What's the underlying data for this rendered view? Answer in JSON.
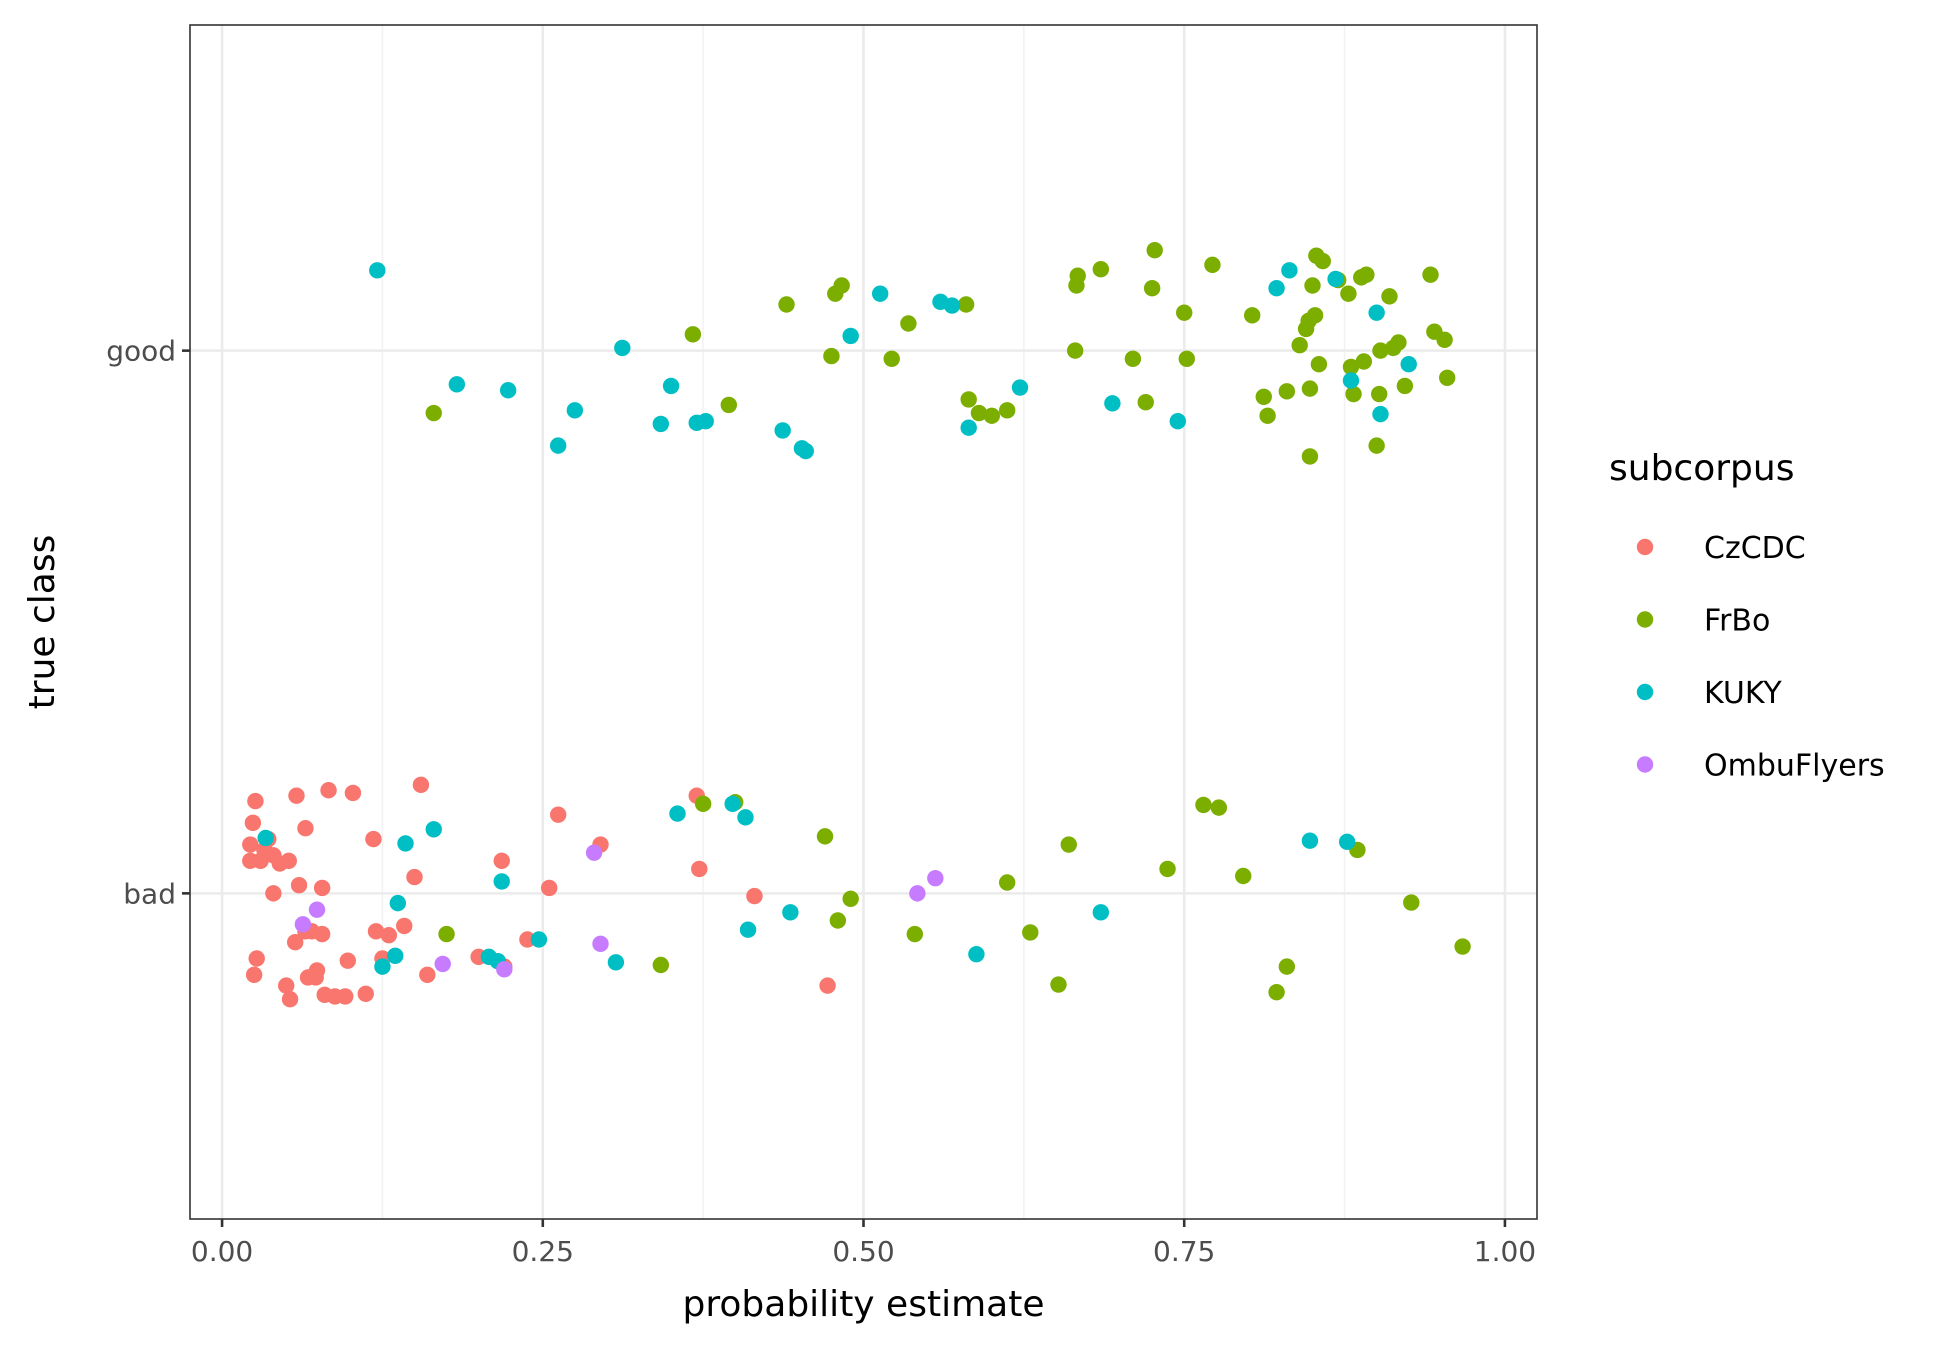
{
  "chart_data": {
    "type": "scatter",
    "xlabel": "probability estimate",
    "ylabel": "true class",
    "xlim": [
      -0.025,
      1.025
    ],
    "x_ticks": [
      "0.00",
      "0.25",
      "0.50",
      "0.75",
      "1.00"
    ],
    "categories": [
      "bad",
      "good"
    ],
    "grid": true,
    "legend": {
      "title": "subcorpus",
      "position": "right"
    },
    "series": [
      {
        "name": "CzCDC",
        "color": "#F8766D",
        "points": [
          {
            "x": 0.022,
            "y": "bad",
            "jitter": 0.09
          },
          {
            "x": 0.024,
            "y": "bad",
            "jitter": 0.13
          },
          {
            "x": 0.026,
            "y": "bad",
            "jitter": 0.17
          },
          {
            "x": 0.022,
            "y": "bad",
            "jitter": 0.06
          },
          {
            "x": 0.03,
            "y": "bad",
            "jitter": 0.06
          },
          {
            "x": 0.033,
            "y": "bad",
            "jitter": 0.08
          },
          {
            "x": 0.036,
            "y": "bad",
            "jitter": 0.1
          },
          {
            "x": 0.04,
            "y": "bad",
            "jitter": 0.07
          },
          {
            "x": 0.045,
            "y": "bad",
            "jitter": 0.055
          },
          {
            "x": 0.052,
            "y": "bad",
            "jitter": 0.06
          },
          {
            "x": 0.04,
            "y": "bad",
            "jitter": 0.0
          },
          {
            "x": 0.058,
            "y": "bad",
            "jitter": 0.18
          },
          {
            "x": 0.065,
            "y": "bad",
            "jitter": 0.12
          },
          {
            "x": 0.06,
            "y": "bad",
            "jitter": 0.015
          },
          {
            "x": 0.078,
            "y": "bad",
            "jitter": 0.01
          },
          {
            "x": 0.083,
            "y": "bad",
            "jitter": 0.19
          },
          {
            "x": 0.102,
            "y": "bad",
            "jitter": 0.185
          },
          {
            "x": 0.118,
            "y": "bad",
            "jitter": 0.1
          },
          {
            "x": 0.155,
            "y": "bad",
            "jitter": 0.2
          },
          {
            "x": 0.15,
            "y": "bad",
            "jitter": 0.03
          },
          {
            "x": 0.057,
            "y": "bad",
            "jitter": -0.09
          },
          {
            "x": 0.027,
            "y": "bad",
            "jitter": -0.12
          },
          {
            "x": 0.025,
            "y": "bad",
            "jitter": -0.15
          },
          {
            "x": 0.05,
            "y": "bad",
            "jitter": -0.17
          },
          {
            "x": 0.053,
            "y": "bad",
            "jitter": -0.195
          },
          {
            "x": 0.065,
            "y": "bad",
            "jitter": -0.07
          },
          {
            "x": 0.067,
            "y": "bad",
            "jitter": -0.155
          },
          {
            "x": 0.07,
            "y": "bad",
            "jitter": -0.07
          },
          {
            "x": 0.073,
            "y": "bad",
            "jitter": -0.155
          },
          {
            "x": 0.074,
            "y": "bad",
            "jitter": -0.142
          },
          {
            "x": 0.078,
            "y": "bad",
            "jitter": -0.075
          },
          {
            "x": 0.08,
            "y": "bad",
            "jitter": -0.187
          },
          {
            "x": 0.088,
            "y": "bad",
            "jitter": -0.19
          },
          {
            "x": 0.096,
            "y": "bad",
            "jitter": -0.19
          },
          {
            "x": 0.098,
            "y": "bad",
            "jitter": -0.124
          },
          {
            "x": 0.112,
            "y": "bad",
            "jitter": -0.185
          },
          {
            "x": 0.12,
            "y": "bad",
            "jitter": -0.07
          },
          {
            "x": 0.125,
            "y": "bad",
            "jitter": -0.12
          },
          {
            "x": 0.13,
            "y": "bad",
            "jitter": -0.077
          },
          {
            "x": 0.142,
            "y": "bad",
            "jitter": -0.06
          },
          {
            "x": 0.16,
            "y": "bad",
            "jitter": -0.15
          },
          {
            "x": 0.2,
            "y": "bad",
            "jitter": -0.117
          },
          {
            "x": 0.218,
            "y": "bad",
            "jitter": 0.06
          },
          {
            "x": 0.22,
            "y": "bad",
            "jitter": -0.135
          },
          {
            "x": 0.238,
            "y": "bad",
            "jitter": -0.085
          },
          {
            "x": 0.255,
            "y": "bad",
            "jitter": 0.01
          },
          {
            "x": 0.262,
            "y": "bad",
            "jitter": 0.145
          },
          {
            "x": 0.295,
            "y": "bad",
            "jitter": 0.09
          },
          {
            "x": 0.37,
            "y": "bad",
            "jitter": 0.18
          },
          {
            "x": 0.372,
            "y": "bad",
            "jitter": 0.045
          },
          {
            "x": 0.415,
            "y": "bad",
            "jitter": -0.005
          },
          {
            "x": 0.472,
            "y": "bad",
            "jitter": -0.17
          }
        ]
      },
      {
        "name": "FrBo",
        "color": "#7CAE00",
        "points": [
          {
            "x": 0.165,
            "y": "good",
            "jitter": -0.115
          },
          {
            "x": 0.367,
            "y": "good",
            "jitter": 0.03
          },
          {
            "x": 0.395,
            "y": "good",
            "jitter": -0.1
          },
          {
            "x": 0.44,
            "y": "good",
            "jitter": 0.085
          },
          {
            "x": 0.475,
            "y": "good",
            "jitter": -0.01
          },
          {
            "x": 0.478,
            "y": "good",
            "jitter": 0.105
          },
          {
            "x": 0.483,
            "y": "good",
            "jitter": 0.12
          },
          {
            "x": 0.522,
            "y": "good",
            "jitter": -0.015
          },
          {
            "x": 0.535,
            "y": "good",
            "jitter": 0.05
          },
          {
            "x": 0.58,
            "y": "good",
            "jitter": 0.085
          },
          {
            "x": 0.582,
            "y": "good",
            "jitter": -0.09
          },
          {
            "x": 0.59,
            "y": "good",
            "jitter": -0.115
          },
          {
            "x": 0.6,
            "y": "good",
            "jitter": -0.12
          },
          {
            "x": 0.612,
            "y": "good",
            "jitter": -0.11
          },
          {
            "x": 0.665,
            "y": "good",
            "jitter": 0.0
          },
          {
            "x": 0.666,
            "y": "good",
            "jitter": 0.12
          },
          {
            "x": 0.667,
            "y": "good",
            "jitter": 0.138
          },
          {
            "x": 0.685,
            "y": "good",
            "jitter": 0.15
          },
          {
            "x": 0.71,
            "y": "good",
            "jitter": -0.015
          },
          {
            "x": 0.72,
            "y": "good",
            "jitter": -0.095
          },
          {
            "x": 0.725,
            "y": "good",
            "jitter": 0.115
          },
          {
            "x": 0.727,
            "y": "good",
            "jitter": 0.185
          },
          {
            "x": 0.75,
            "y": "good",
            "jitter": 0.07
          },
          {
            "x": 0.752,
            "y": "good",
            "jitter": -0.015
          },
          {
            "x": 0.772,
            "y": "good",
            "jitter": 0.158
          },
          {
            "x": 0.803,
            "y": "good",
            "jitter": 0.065
          },
          {
            "x": 0.812,
            "y": "good",
            "jitter": -0.085
          },
          {
            "x": 0.815,
            "y": "good",
            "jitter": -0.12
          },
          {
            "x": 0.83,
            "y": "good",
            "jitter": -0.075
          },
          {
            "x": 0.84,
            "y": "good",
            "jitter": 0.01
          },
          {
            "x": 0.845,
            "y": "good",
            "jitter": 0.04
          },
          {
            "x": 0.847,
            "y": "good",
            "jitter": 0.055
          },
          {
            "x": 0.848,
            "y": "good",
            "jitter": -0.07
          },
          {
            "x": 0.848,
            "y": "good",
            "jitter": -0.195
          },
          {
            "x": 0.85,
            "y": "good",
            "jitter": 0.12
          },
          {
            "x": 0.852,
            "y": "good",
            "jitter": 0.065
          },
          {
            "x": 0.853,
            "y": "good",
            "jitter": 0.175
          },
          {
            "x": 0.855,
            "y": "good",
            "jitter": -0.025
          },
          {
            "x": 0.858,
            "y": "good",
            "jitter": 0.165
          },
          {
            "x": 0.87,
            "y": "good",
            "jitter": 0.13
          },
          {
            "x": 0.878,
            "y": "good",
            "jitter": 0.105
          },
          {
            "x": 0.88,
            "y": "good",
            "jitter": -0.03
          },
          {
            "x": 0.882,
            "y": "good",
            "jitter": -0.08
          },
          {
            "x": 0.888,
            "y": "good",
            "jitter": 0.135
          },
          {
            "x": 0.89,
            "y": "good",
            "jitter": -0.02
          },
          {
            "x": 0.892,
            "y": "good",
            "jitter": 0.14
          },
          {
            "x": 0.9,
            "y": "good",
            "jitter": -0.175
          },
          {
            "x": 0.902,
            "y": "good",
            "jitter": -0.08
          },
          {
            "x": 0.903,
            "y": "good",
            "jitter": 0.0
          },
          {
            "x": 0.91,
            "y": "good",
            "jitter": 0.1
          },
          {
            "x": 0.913,
            "y": "good",
            "jitter": 0.005
          },
          {
            "x": 0.917,
            "y": "good",
            "jitter": 0.015
          },
          {
            "x": 0.922,
            "y": "good",
            "jitter": -0.065
          },
          {
            "x": 0.942,
            "y": "good",
            "jitter": 0.14
          },
          {
            "x": 0.945,
            "y": "good",
            "jitter": 0.035
          },
          {
            "x": 0.953,
            "y": "good",
            "jitter": 0.02
          },
          {
            "x": 0.955,
            "y": "good",
            "jitter": -0.05
          },
          {
            "x": 0.175,
            "y": "bad",
            "jitter": -0.075
          },
          {
            "x": 0.342,
            "y": "bad",
            "jitter": -0.132
          },
          {
            "x": 0.375,
            "y": "bad",
            "jitter": 0.165
          },
          {
            "x": 0.4,
            "y": "bad",
            "jitter": 0.168
          },
          {
            "x": 0.47,
            "y": "bad",
            "jitter": 0.105
          },
          {
            "x": 0.48,
            "y": "bad",
            "jitter": -0.05
          },
          {
            "x": 0.49,
            "y": "bad",
            "jitter": -0.01
          },
          {
            "x": 0.54,
            "y": "bad",
            "jitter": -0.075
          },
          {
            "x": 0.612,
            "y": "bad",
            "jitter": 0.02
          },
          {
            "x": 0.63,
            "y": "bad",
            "jitter": -0.072
          },
          {
            "x": 0.652,
            "y": "bad",
            "jitter": -0.168
          },
          {
            "x": 0.66,
            "y": "bad",
            "jitter": 0.09
          },
          {
            "x": 0.737,
            "y": "bad",
            "jitter": 0.045
          },
          {
            "x": 0.765,
            "y": "bad",
            "jitter": 0.163
          },
          {
            "x": 0.777,
            "y": "bad",
            "jitter": 0.158
          },
          {
            "x": 0.796,
            "y": "bad",
            "jitter": 0.032
          },
          {
            "x": 0.822,
            "y": "bad",
            "jitter": -0.182
          },
          {
            "x": 0.83,
            "y": "bad",
            "jitter": -0.135
          },
          {
            "x": 0.885,
            "y": "bad",
            "jitter": 0.08
          },
          {
            "x": 0.927,
            "y": "bad",
            "jitter": -0.017
          },
          {
            "x": 0.967,
            "y": "bad",
            "jitter": -0.098
          }
        ]
      },
      {
        "name": "KUKY",
        "color": "#00BFC4",
        "points": [
          {
            "x": 0.121,
            "y": "good",
            "jitter": 0.148
          },
          {
            "x": 0.183,
            "y": "good",
            "jitter": -0.062
          },
          {
            "x": 0.223,
            "y": "good",
            "jitter": -0.073
          },
          {
            "x": 0.262,
            "y": "good",
            "jitter": -0.175
          },
          {
            "x": 0.275,
            "y": "good",
            "jitter": -0.11
          },
          {
            "x": 0.312,
            "y": "good",
            "jitter": 0.005
          },
          {
            "x": 0.342,
            "y": "good",
            "jitter": -0.135
          },
          {
            "x": 0.35,
            "y": "good",
            "jitter": -0.065
          },
          {
            "x": 0.37,
            "y": "good",
            "jitter": -0.133
          },
          {
            "x": 0.377,
            "y": "good",
            "jitter": -0.13
          },
          {
            "x": 0.437,
            "y": "good",
            "jitter": -0.147
          },
          {
            "x": 0.452,
            "y": "good",
            "jitter": -0.18
          },
          {
            "x": 0.455,
            "y": "good",
            "jitter": -0.185
          },
          {
            "x": 0.49,
            "y": "good",
            "jitter": 0.027
          },
          {
            "x": 0.513,
            "y": "good",
            "jitter": 0.105
          },
          {
            "x": 0.56,
            "y": "good",
            "jitter": 0.09
          },
          {
            "x": 0.569,
            "y": "good",
            "jitter": 0.083
          },
          {
            "x": 0.582,
            "y": "good",
            "jitter": -0.142
          },
          {
            "x": 0.622,
            "y": "good",
            "jitter": -0.068
          },
          {
            "x": 0.694,
            "y": "good",
            "jitter": -0.097
          },
          {
            "x": 0.745,
            "y": "good",
            "jitter": -0.13
          },
          {
            "x": 0.822,
            "y": "good",
            "jitter": 0.115
          },
          {
            "x": 0.832,
            "y": "good",
            "jitter": 0.148
          },
          {
            "x": 0.868,
            "y": "good",
            "jitter": 0.132
          },
          {
            "x": 0.88,
            "y": "good",
            "jitter": -0.055
          },
          {
            "x": 0.9,
            "y": "good",
            "jitter": 0.07
          },
          {
            "x": 0.903,
            "y": "good",
            "jitter": -0.117
          },
          {
            "x": 0.925,
            "y": "good",
            "jitter": -0.025
          },
          {
            "x": 0.034,
            "y": "bad",
            "jitter": 0.102
          },
          {
            "x": 0.125,
            "y": "bad",
            "jitter": -0.135
          },
          {
            "x": 0.135,
            "y": "bad",
            "jitter": -0.115
          },
          {
            "x": 0.137,
            "y": "bad",
            "jitter": -0.018
          },
          {
            "x": 0.143,
            "y": "bad",
            "jitter": 0.092
          },
          {
            "x": 0.165,
            "y": "bad",
            "jitter": 0.118
          },
          {
            "x": 0.208,
            "y": "bad",
            "jitter": -0.117
          },
          {
            "x": 0.215,
            "y": "bad",
            "jitter": -0.125
          },
          {
            "x": 0.218,
            "y": "bad",
            "jitter": 0.022
          },
          {
            "x": 0.247,
            "y": "bad",
            "jitter": -0.085
          },
          {
            "x": 0.307,
            "y": "bad",
            "jitter": -0.127
          },
          {
            "x": 0.355,
            "y": "bad",
            "jitter": 0.147
          },
          {
            "x": 0.398,
            "y": "bad",
            "jitter": 0.165
          },
          {
            "x": 0.408,
            "y": "bad",
            "jitter": 0.14
          },
          {
            "x": 0.41,
            "y": "bad",
            "jitter": -0.067
          },
          {
            "x": 0.443,
            "y": "bad",
            "jitter": -0.035
          },
          {
            "x": 0.588,
            "y": "bad",
            "jitter": -0.112
          },
          {
            "x": 0.685,
            "y": "bad",
            "jitter": -0.035
          },
          {
            "x": 0.848,
            "y": "bad",
            "jitter": 0.097
          },
          {
            "x": 0.877,
            "y": "bad",
            "jitter": 0.095
          }
        ]
      },
      {
        "name": "OmbuFlyers",
        "color": "#C77CFF",
        "points": [
          {
            "x": 0.063,
            "y": "bad",
            "jitter": -0.057
          },
          {
            "x": 0.074,
            "y": "bad",
            "jitter": -0.03
          },
          {
            "x": 0.172,
            "y": "bad",
            "jitter": -0.13
          },
          {
            "x": 0.22,
            "y": "bad",
            "jitter": -0.14
          },
          {
            "x": 0.29,
            "y": "bad",
            "jitter": 0.075
          },
          {
            "x": 0.295,
            "y": "bad",
            "jitter": -0.093
          },
          {
            "x": 0.542,
            "y": "bad",
            "jitter": 0.0
          },
          {
            "x": 0.556,
            "y": "bad",
            "jitter": 0.028
          }
        ]
      }
    ]
  }
}
